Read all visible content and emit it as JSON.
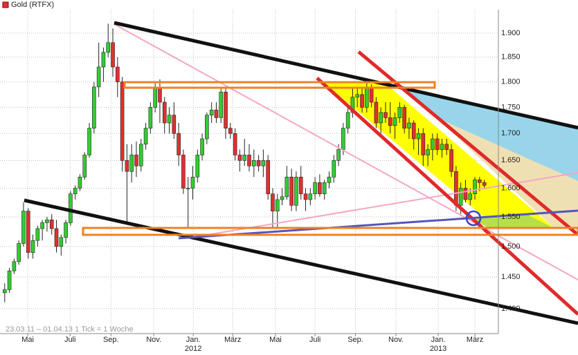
{
  "chart_data": {
    "type": "candlestick",
    "title": "Gold (RTFX)",
    "subtitle": "23.03.11 – 01.04.13   1 Tick = 1 Woche",
    "up_color": "#33cc33",
    "down_color": "#e03030",
    "title_color": "#e03030",
    "log_scale": true,
    "grid": true,
    "ylim": [
      1362,
      1950
    ],
    "yticks": [
      {
        "value": 1400,
        "label": "1.400"
      },
      {
        "value": 1450,
        "label": "1.450"
      },
      {
        "value": 1500,
        "label": "1.500"
      },
      {
        "value": 1550,
        "label": "1.550"
      },
      {
        "value": 1600,
        "label": "1.600"
      },
      {
        "value": 1650,
        "label": "1.650"
      },
      {
        "value": 1700,
        "label": "1.700"
      },
      {
        "value": 1750,
        "label": "1.750"
      },
      {
        "value": 1800,
        "label": "1.800"
      },
      {
        "value": 1850,
        "label": "1.850"
      },
      {
        "value": 1900,
        "label": "1.900"
      }
    ],
    "xlim": [
      -1,
      105
    ],
    "xticks": [
      {
        "value": 4.9,
        "label": "Mai"
      },
      {
        "value": 13.9,
        "label": "Juli"
      },
      {
        "value": 22.6,
        "label": "Sep."
      },
      {
        "value": 31.7,
        "label": "Nov."
      },
      {
        "value": 40.1,
        "label": "Jan."
      },
      {
        "value": 48.5,
        "label": "März"
      },
      {
        "value": 57.6,
        "label": "Mai"
      },
      {
        "value": 66,
        "label": "Juli"
      },
      {
        "value": 74.6,
        "label": "Sep."
      },
      {
        "value": 83.2,
        "label": "Nov."
      },
      {
        "value": 92.2,
        "label": "Jan."
      },
      {
        "value": 100,
        "label": "März"
      }
    ],
    "year_labels": [
      {
        "value": 40.1,
        "label": "2012"
      },
      {
        "value": 92.2,
        "label": "2013"
      }
    ],
    "ohlc": [
      [
        1425,
        1440,
        1410,
        1430
      ],
      [
        1430,
        1465,
        1425,
        1460
      ],
      [
        1460,
        1480,
        1455,
        1475
      ],
      [
        1475,
        1510,
        1470,
        1505
      ],
      [
        1505,
        1575,
        1500,
        1560
      ],
      [
        1560,
        1565,
        1480,
        1490
      ],
      [
        1490,
        1520,
        1480,
        1510
      ],
      [
        1510,
        1535,
        1500,
        1530
      ],
      [
        1530,
        1545,
        1510,
        1540
      ],
      [
        1540,
        1550,
        1525,
        1545
      ],
      [
        1545,
        1555,
        1520,
        1530
      ],
      [
        1530,
        1545,
        1490,
        1500
      ],
      [
        1500,
        1520,
        1485,
        1515
      ],
      [
        1515,
        1545,
        1505,
        1540
      ],
      [
        1540,
        1595,
        1535,
        1590
      ],
      [
        1590,
        1605,
        1580,
        1600
      ],
      [
        1600,
        1625,
        1595,
        1620
      ],
      [
        1620,
        1665,
        1615,
        1660
      ],
      [
        1660,
        1720,
        1655,
        1710
      ],
      [
        1710,
        1800,
        1700,
        1790
      ],
      [
        1790,
        1880,
        1770,
        1830
      ],
      [
        1830,
        1870,
        1800,
        1860
      ],
      [
        1860,
        1920,
        1850,
        1880
      ],
      [
        1880,
        1910,
        1810,
        1830
      ],
      [
        1830,
        1850,
        1770,
        1800
      ],
      [
        1800,
        1810,
        1630,
        1650
      ],
      [
        1650,
        1680,
        1540,
        1630
      ],
      [
        1630,
        1680,
        1610,
        1660
      ],
      [
        1660,
        1685,
        1620,
        1640
      ],
      [
        1640,
        1690,
        1630,
        1680
      ],
      [
        1680,
        1720,
        1670,
        1710
      ],
      [
        1710,
        1760,
        1700,
        1750
      ],
      [
        1750,
        1800,
        1740,
        1790
      ],
      [
        1790,
        1805,
        1720,
        1760
      ],
      [
        1760,
        1770,
        1700,
        1720
      ],
      [
        1720,
        1750,
        1700,
        1735
      ],
      [
        1735,
        1760,
        1690,
        1700
      ],
      [
        1700,
        1720,
        1640,
        1660
      ],
      [
        1660,
        1670,
        1590,
        1600
      ],
      [
        1600,
        1620,
        1530,
        1600
      ],
      [
        1600,
        1640,
        1580,
        1620
      ],
      [
        1620,
        1670,
        1610,
        1660
      ],
      [
        1660,
        1700,
        1650,
        1690
      ],
      [
        1690,
        1740,
        1680,
        1735
      ],
      [
        1735,
        1760,
        1720,
        1745
      ],
      [
        1745,
        1760,
        1720,
        1730
      ],
      [
        1730,
        1790,
        1720,
        1780
      ],
      [
        1780,
        1790,
        1690,
        1710
      ],
      [
        1710,
        1720,
        1690,
        1700
      ],
      [
        1700,
        1710,
        1650,
        1660
      ],
      [
        1660,
        1670,
        1630,
        1650
      ],
      [
        1650,
        1690,
        1640,
        1660
      ],
      [
        1660,
        1680,
        1630,
        1640
      ],
      [
        1640,
        1670,
        1620,
        1650
      ],
      [
        1650,
        1660,
        1630,
        1640
      ],
      [
        1640,
        1670,
        1620,
        1650
      ],
      [
        1650,
        1660,
        1580,
        1590
      ],
      [
        1590,
        1600,
        1530,
        1560
      ],
      [
        1560,
        1590,
        1530,
        1580
      ],
      [
        1580,
        1600,
        1570,
        1585
      ],
      [
        1585,
        1640,
        1580,
        1620
      ],
      [
        1620,
        1635,
        1560,
        1570
      ],
      [
        1570,
        1630,
        1560,
        1620
      ],
      [
        1620,
        1640,
        1580,
        1590
      ],
      [
        1590,
        1600,
        1560,
        1580
      ],
      [
        1580,
        1600,
        1570,
        1590
      ],
      [
        1590,
        1620,
        1580,
        1610
      ],
      [
        1610,
        1625,
        1585,
        1590
      ],
      [
        1590,
        1615,
        1580,
        1610
      ],
      [
        1610,
        1630,
        1600,
        1620
      ],
      [
        1620,
        1660,
        1610,
        1650
      ],
      [
        1650,
        1680,
        1640,
        1670
      ],
      [
        1670,
        1720,
        1660,
        1710
      ],
      [
        1710,
        1750,
        1700,
        1740
      ],
      [
        1740,
        1790,
        1730,
        1770
      ],
      [
        1770,
        1790,
        1750,
        1775
      ],
      [
        1775,
        1790,
        1740,
        1750
      ],
      [
        1750,
        1800,
        1740,
        1790
      ],
      [
        1790,
        1795,
        1750,
        1760
      ],
      [
        1760,
        1770,
        1710,
        1720
      ],
      [
        1720,
        1750,
        1700,
        1740
      ],
      [
        1740,
        1760,
        1720,
        1730
      ],
      [
        1730,
        1760,
        1700,
        1715
      ],
      [
        1715,
        1740,
        1690,
        1730
      ],
      [
        1730,
        1760,
        1720,
        1750
      ],
      [
        1750,
        1755,
        1700,
        1710
      ],
      [
        1710,
        1730,
        1690,
        1720
      ],
      [
        1720,
        1725,
        1670,
        1690
      ],
      [
        1690,
        1710,
        1660,
        1700
      ],
      [
        1700,
        1710,
        1640,
        1660
      ],
      [
        1660,
        1680,
        1640,
        1670
      ],
      [
        1670,
        1700,
        1650,
        1690
      ],
      [
        1690,
        1700,
        1660,
        1670
      ],
      [
        1670,
        1690,
        1655,
        1680
      ],
      [
        1680,
        1690,
        1660,
        1670
      ],
      [
        1670,
        1680,
        1620,
        1630
      ],
      [
        1630,
        1640,
        1560,
        1570
      ],
      [
        1570,
        1610,
        1555,
        1600
      ],
      [
        1600,
        1615,
        1575,
        1580
      ],
      [
        1580,
        1600,
        1570,
        1590
      ],
      [
        1590,
        1620,
        1580,
        1615
      ],
      [
        1615,
        1620,
        1595,
        1610
      ],
      [
        1610,
        1615,
        1600,
        1605
      ]
    ]
  }
}
